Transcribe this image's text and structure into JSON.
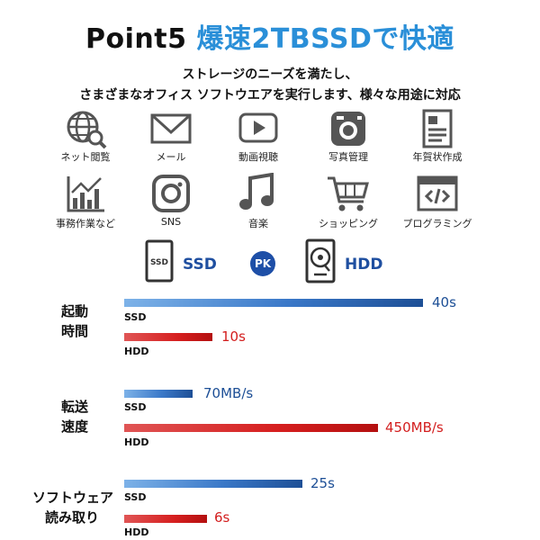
{
  "title": {
    "part1": "Point5 ",
    "part2": "爆速2TBSSDで快適"
  },
  "subtitle": {
    "line1": "ストレージのニーズを満たし、",
    "line2": "さまざまなオフィス ソフトウエアを実行します、様々な用途に対応"
  },
  "icons_row1": [
    {
      "label": "ネット閲覧",
      "icon": "globe-search-icon"
    },
    {
      "label": "メール",
      "icon": "mail-icon"
    },
    {
      "label": "動画視聴",
      "icon": "video-play-icon"
    },
    {
      "label": "写真管理",
      "icon": "camera-icon"
    },
    {
      "label": "年賀状作成",
      "icon": "card-icon"
    }
  ],
  "icons_row2": [
    {
      "label": "事務作業など",
      "icon": "chart-icon"
    },
    {
      "label": "SNS",
      "icon": "instagram-icon"
    },
    {
      "label": "音楽",
      "icon": "music-note-icon"
    },
    {
      "label": "ショッピング",
      "icon": "cart-icon"
    },
    {
      "label": "プログラミング",
      "icon": "code-window-icon"
    }
  ],
  "compare": {
    "ssd": "SSD",
    "pk": "PK",
    "hdd": "HDD",
    "ssd_icon_text": "SSD"
  },
  "groups": [
    {
      "line1": "起動",
      "line2": "時間",
      "ssd_value": "40s",
      "hdd_value": "10s"
    },
    {
      "line1": "転送",
      "line2": "速度",
      "ssd_value": "70MB/s",
      "hdd_value": "450MB/s"
    },
    {
      "line1": "ソフトウェア",
      "line2": "読み取り",
      "ssd_value": "25s",
      "hdd_value": "6s"
    }
  ],
  "bar_labels": {
    "ssd": "SSD",
    "hdd": "HDD"
  },
  "colors": {
    "accent": "#2a8fd8",
    "ssd": "#1d4f96",
    "hdd": "#d31e1e"
  }
}
